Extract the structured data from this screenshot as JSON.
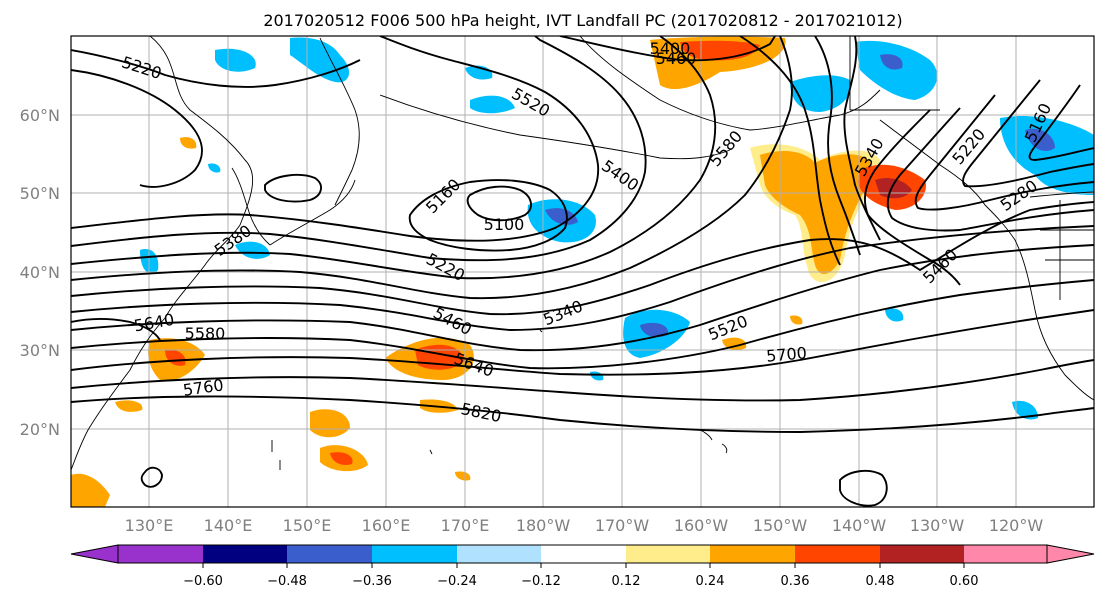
{
  "title": "2017020512 F006 500 hPa height, IVT Landfall PC (2017020812 - 2017021012)",
  "lat_labels": [
    "60°N",
    "50°N",
    "40°N",
    "30°N",
    "20°N"
  ],
  "lon_labels": [
    "130°E",
    "140°E",
    "150°E",
    "160°E",
    "170°E",
    "180°W",
    "170°W",
    "160°W",
    "150°W",
    "140°W",
    "130°W",
    "120°W"
  ],
  "contour_labels": {
    "h5220a": "5220",
    "h5520": "5520",
    "h5400top": "5400",
    "h5460top": "5460",
    "h5400b": "5400",
    "h5580": "5580",
    "h5160": "5160",
    "h5100": "5100",
    "h5220b": "5220",
    "h5340": "5340",
    "h5460": "5460",
    "h5640": "5640",
    "h5820": "5820",
    "h5700": "5700",
    "h5520b": "5520",
    "h5460e": "5460",
    "h5280": "5280",
    "h5220e": "5220",
    "h5160e": "5160",
    "h5340ne": "5340",
    "h5580w": "5580",
    "h5760": "5760",
    "h5380": "5380",
    "h5640w": "5640"
  },
  "colorbar": {
    "colors": [
      "#9932cc",
      "#000080",
      "#3a5fcd",
      "#00bfff",
      "#b0e2ff",
      "#ffffff",
      "#ffec8b",
      "#ffa500",
      "#ff4500",
      "#b22222",
      "#ff88aa"
    ],
    "ticks": [
      "−0.60",
      "−0.48",
      "−0.36",
      "−0.24",
      "−0.12",
      "0.12",
      "0.24",
      "0.36",
      "0.48",
      "0.60"
    ]
  },
  "shading_colors": {
    "neg_weak": "#00bfff",
    "neg_mid": "#3a5fcd",
    "neg_light": "#b0e2ff",
    "pos_light": "#ffec8b",
    "pos_mid": "#ffa500",
    "pos_strong": "#ff4500",
    "pos_dark": "#b22222"
  }
}
